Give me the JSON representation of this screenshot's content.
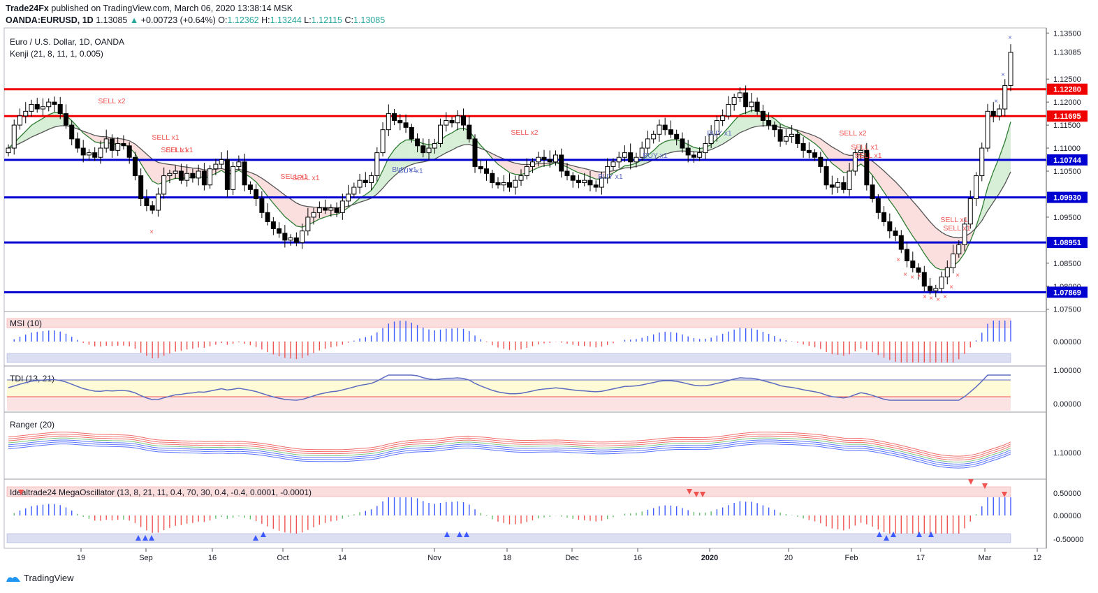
{
  "header": {
    "publisher": "Trade24Fx",
    "published_line": "published on TradingView.com, March 06, 2020 13:38:14 MSK",
    "symbol": "OANDA:EURUSD, 1D",
    "last": "1.13085",
    "change": "+0.00723 (+0.64%)",
    "o_label": "O:",
    "o": "1.12362",
    "h_label": "H:",
    "h": "1.13244",
    "l_label": "L:",
    "l": "1.12115",
    "c_label": "C:",
    "c": "1.13085"
  },
  "main_pane": {
    "title": "Euro / U.S. Dollar, 1D, OANDA",
    "indicator": "Kenji (21, 8, 11, 1, 0.005)"
  },
  "footer": {
    "brand": "TradingView"
  },
  "colors": {
    "red_level": "#f00000",
    "blue_level": "#0000d0",
    "bull": "#ffffff",
    "bear": "#000000",
    "sell": "#ef5350",
    "buy": "#5c6bc0"
  },
  "chart_data": [
    {
      "type": "candlestick",
      "title": "Euro / U.S. Dollar, 1D, OANDA",
      "x_ticks": [
        "19",
        "Sep",
        "16",
        "Oct",
        "14",
        "Nov",
        "18",
        "Dec",
        "16",
        "2020",
        "20",
        "Feb",
        "17",
        "Mar",
        "12"
      ],
      "y_ticks": [
        "1.13500",
        "1.12500",
        "1.12000",
        "1.11500",
        "1.11000",
        "1.10500",
        "1.09500",
        "1.08500",
        "1.08000",
        "1.07500"
      ],
      "ylim": [
        1.0745,
        1.1355
      ],
      "last_price_label": "1.13085",
      "levels": [
        {
          "value": 1.1228,
          "label": "1.12280",
          "color": "red"
        },
        {
          "value": 1.11695,
          "label": "1.11695",
          "color": "red"
        },
        {
          "value": 1.10744,
          "label": "1.10744",
          "color": "blue"
        },
        {
          "value": 1.0993,
          "label": "1.09930",
          "color": "blue"
        },
        {
          "value": 1.08951,
          "label": "1.08951",
          "color": "blue"
        },
        {
          "value": 1.07869,
          "label": "1.07869",
          "color": "blue"
        }
      ],
      "close": [
        1.11,
        1.115,
        1.117,
        1.118,
        1.1195,
        1.1185,
        1.119,
        1.12,
        1.1195,
        1.1175,
        1.115,
        1.112,
        1.11,
        1.1085,
        1.109,
        1.108,
        1.11,
        1.112,
        1.1095,
        1.111,
        1.1105,
        1.108,
        1.104,
        1.099,
        1.0975,
        1.0965,
        1.1,
        1.104,
        1.1045,
        1.105,
        1.103,
        1.1045,
        1.1035,
        1.105,
        1.102,
        1.1055,
        1.1065,
        1.1075,
        1.101,
        1.106,
        1.107,
        1.102,
        1.101,
        1.099,
        1.096,
        1.094,
        1.0925,
        1.0915,
        1.09,
        1.0905,
        1.0895,
        1.092,
        1.095,
        1.096,
        1.097,
        1.0965,
        1.097,
        1.096,
        1.0985,
        1.1,
        1.1015,
        1.103,
        1.1025,
        1.104,
        1.109,
        1.114,
        1.1175,
        1.116,
        1.1155,
        1.1145,
        1.112,
        1.1105,
        1.109,
        1.11,
        1.111,
        1.115,
        1.116,
        1.1155,
        1.117,
        1.115,
        1.112,
        1.106,
        1.1055,
        1.1045,
        1.1025,
        1.102,
        1.1025,
        1.1015,
        1.103,
        1.104,
        1.106,
        1.107,
        1.108,
        1.1075,
        1.107,
        1.1085,
        1.105,
        1.104,
        1.103,
        1.1025,
        1.103,
        1.102,
        1.1015,
        1.1035,
        1.106,
        1.107,
        1.108,
        1.109,
        1.107,
        1.108,
        1.11,
        1.112,
        1.113,
        1.115,
        1.114,
        1.113,
        1.112,
        1.11,
        1.1085,
        1.108,
        1.109,
        1.111,
        1.113,
        1.116,
        1.117,
        1.1195,
        1.121,
        1.122,
        1.119,
        1.12,
        1.118,
        1.116,
        1.115,
        1.114,
        1.1115,
        1.1125,
        1.113,
        1.111,
        1.1095,
        1.109,
        1.108,
        1.106,
        1.102,
        1.1015,
        1.1025,
        1.101,
        1.105,
        1.109,
        1.1095,
        1.102,
        1.099,
        1.096,
        1.094,
        1.092,
        1.091,
        1.088,
        1.0855,
        1.084,
        1.083,
        1.08,
        1.079,
        1.0795,
        1.082,
        1.084,
        1.087,
        1.089,
        1.0935,
        1.099,
        1.104,
        1.11,
        1.118,
        1.117,
        1.1185,
        1.1236,
        1.1308
      ]
    },
    {
      "type": "bar",
      "title": "MSI (10)",
      "y_ticks": [
        "0.00000"
      ]
    },
    {
      "type": "line",
      "title": "TDI (13, 21)",
      "y_ticks": [
        "1.00000",
        "0.00000"
      ]
    },
    {
      "type": "line",
      "title": "Ranger (20)",
      "y_ticks": [
        "1.10000"
      ]
    },
    {
      "type": "bar",
      "title": "Idealtrade24 MegaOscillator (13, 8, 21, 11, 0.4, 70, 30, 0.4, -0.4, 0.0001, -0.0001)",
      "y_ticks": [
        "0.50000",
        "0.00000",
        "-0.50000"
      ]
    }
  ],
  "signals": [
    "SELL x2",
    "SELL x1",
    "SELL x1",
    "SELL x1",
    "SELL x1",
    "SELL x1",
    "BUY x1",
    "BUY x1",
    "SELL x2",
    "BUY x1",
    "BUY x1",
    "BUY x1",
    "SELL x2",
    "SELL x1",
    "SELL x1",
    "SELL x1",
    "SELL x1"
  ]
}
